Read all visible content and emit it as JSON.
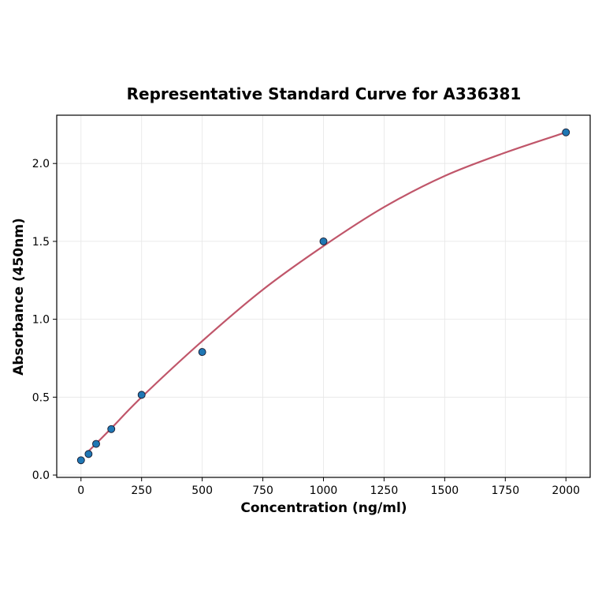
{
  "chart_data": {
    "type": "scatter",
    "title": "Representative Standard Curve for A336381",
    "xlabel": "Concentration (ng/ml)",
    "ylabel": "Absorbance (450nm)",
    "xlim": [
      -100,
      2100
    ],
    "ylim": [
      -0.015,
      2.31
    ],
    "xticks": [
      0,
      250,
      500,
      750,
      1000,
      1250,
      1500,
      1750,
      2000
    ],
    "yticks": [
      0.0,
      0.5,
      1.0,
      1.5,
      2.0
    ],
    "xtick_labels": [
      "0",
      "250",
      "500",
      "750",
      "1000",
      "1250",
      "1500",
      "1750",
      "2000"
    ],
    "ytick_labels": [
      "0.0",
      "0.5",
      "1.0",
      "1.5",
      "2.0"
    ],
    "grid": true,
    "points": {
      "x": [
        0,
        31.25,
        62.5,
        125,
        250,
        500,
        1000,
        2000
      ],
      "y": [
        0.095,
        0.135,
        0.2,
        0.295,
        0.515,
        0.79,
        1.5,
        2.2
      ]
    },
    "fit_curve": {
      "x": [
        31.25,
        125,
        250,
        500,
        750,
        1000,
        1250,
        1500,
        1750,
        2000
      ],
      "y": [
        0.153,
        0.3,
        0.5,
        0.86,
        1.19,
        1.47,
        1.72,
        1.92,
        2.07,
        2.2
      ]
    },
    "colors": {
      "points": "#1f77b4",
      "curve": "#c0566a"
    }
  }
}
